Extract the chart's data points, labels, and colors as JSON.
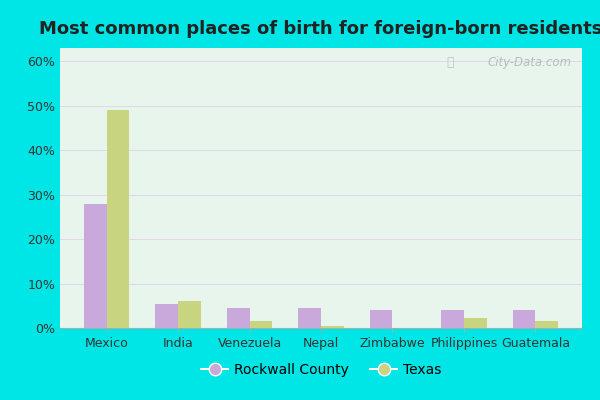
{
  "title": "Most common places of birth for foreign-born residents",
  "categories": [
    "Mexico",
    "India",
    "Venezuela",
    "Nepal",
    "Zimbabwe",
    "Philippines",
    "Guatemala"
  ],
  "rockwall": [
    28.0,
    5.5,
    4.5,
    4.5,
    4.0,
    4.0,
    4.0
  ],
  "texas": [
    49.0,
    6.0,
    1.5,
    0.5,
    0.0,
    2.2,
    1.5
  ],
  "rockwall_color": "#c9a8dc",
  "texas_color": "#c8d480",
  "outer_bg": "#00e5e5",
  "plot_bg": "#e8f5ec",
  "grid_color": "#d8e8d0",
  "ylim": [
    0,
    63
  ],
  "yticks": [
    0,
    10,
    20,
    30,
    40,
    50,
    60
  ],
  "legend_labels": [
    "Rockwall County",
    "Texas"
  ],
  "watermark": "City-Data.com",
  "bar_width": 0.32,
  "title_fontsize": 13,
  "tick_fontsize": 9
}
